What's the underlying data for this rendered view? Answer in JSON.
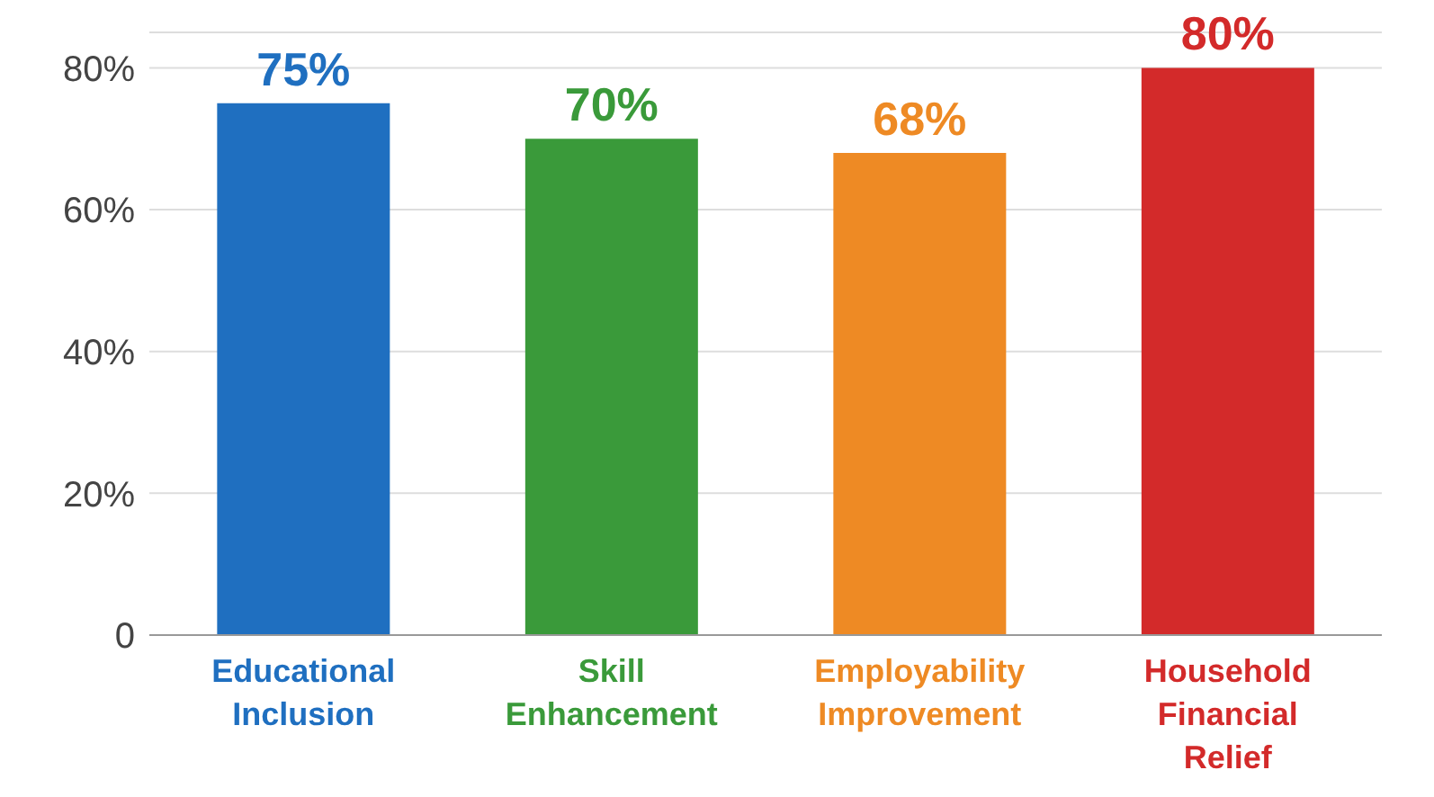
{
  "chart_data": {
    "type": "bar",
    "categories": [
      "Educational Inclusion",
      "Skill Enhancement",
      "Employability Improvement",
      "Household Financial Relief"
    ],
    "values": [
      75,
      70,
      68,
      80
    ],
    "colors": [
      "#1f6fc0",
      "#3a9a3a",
      "#ee8a24",
      "#d32a2a"
    ],
    "value_labels": [
      "75%",
      "70%",
      "68%",
      "80%"
    ],
    "ylim": [
      0,
      85
    ],
    "yticks": [
      {
        "value": 0,
        "label": "0"
      },
      {
        "value": 20,
        "label": "20%"
      },
      {
        "value": 40,
        "label": "40%"
      },
      {
        "value": 60,
        "label": "60%"
      },
      {
        "value": 80,
        "label": "80%"
      }
    ],
    "grid": "y"
  }
}
